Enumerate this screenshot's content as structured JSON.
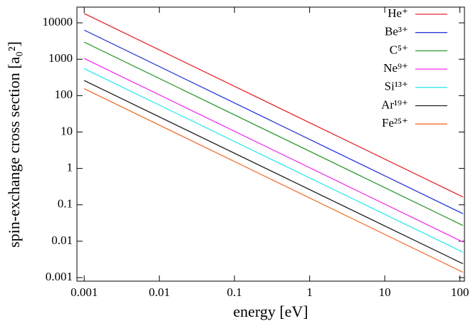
{
  "chart_data": {
    "type": "line",
    "xlabel": "energy [eV]",
    "ylabel": "spin-exchange cross section [a₀²]",
    "x": [
      0.001,
      110
    ],
    "series": [
      {
        "name": "He⁺",
        "color": "#e4262a",
        "values": [
          18000,
          0.164
        ]
      },
      {
        "name": "Be³⁺",
        "color": "#2a3ad4",
        "values": [
          6300,
          0.057
        ]
      },
      {
        "name": "C⁵⁺",
        "color": "#2e992e",
        "values": [
          2950,
          0.027
        ]
      },
      {
        "name": "Ne⁹⁺",
        "color": "#ee33ee",
        "values": [
          1050,
          0.0095
        ]
      },
      {
        "name": "Si¹³⁺",
        "color": "#33e8ee",
        "values": [
          550,
          0.005
        ]
      },
      {
        "name": "Ar¹⁹⁺",
        "color": "#222222",
        "values": [
          260,
          0.0024
        ]
      },
      {
        "name": "Fe²⁵⁺",
        "color": "#f07030",
        "values": [
          155,
          0.0014
        ]
      }
    ],
    "log_x": true,
    "log_y": true,
    "xlim": [
      0.0008,
      115
    ],
    "ylim": [
      0.0008,
      27000
    ],
    "xticks": [
      0.001,
      0.01,
      0.1,
      1,
      10,
      100
    ],
    "yticks": [
      0.001,
      0.01,
      0.1,
      1,
      10,
      100,
      1000,
      10000
    ],
    "grid": false,
    "legend": "upper right"
  }
}
